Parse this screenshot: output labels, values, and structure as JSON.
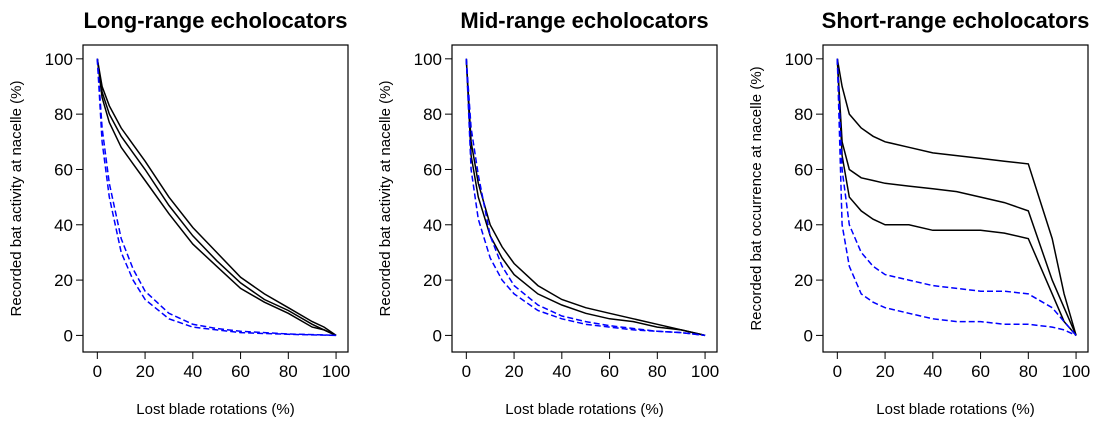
{
  "chart_data": [
    {
      "type": "line",
      "title": "Long-range echolocators",
      "xlabel": "Lost blade rotations (%)",
      "ylabel": "Recorded bat activity at nacelle (%)",
      "x": [
        0,
        2,
        5,
        10,
        15,
        20,
        30,
        40,
        50,
        60,
        70,
        80,
        90,
        95,
        100
      ],
      "xlim": [
        -6,
        105
      ],
      "ylim": [
        -6,
        105
      ],
      "xticks": [
        0,
        20,
        40,
        60,
        80,
        100
      ],
      "yticks": [
        0,
        20,
        40,
        60,
        80,
        100
      ],
      "series": [
        {
          "color": "#000000",
          "linestyle": "solid",
          "values": [
            100,
            88,
            80,
            72,
            66,
            60,
            47,
            36,
            27,
            19,
            13,
            9,
            4,
            2,
            0
          ]
        },
        {
          "color": "#000000",
          "linestyle": "solid",
          "values": [
            100,
            86,
            77,
            68,
            62,
            56,
            44,
            33,
            25,
            17,
            12,
            8,
            3,
            2,
            0
          ]
        },
        {
          "color": "#000000",
          "linestyle": "solid",
          "values": [
            100,
            90,
            83,
            75,
            69,
            63,
            50,
            39,
            30,
            21,
            15,
            10,
            5,
            3,
            0
          ]
        },
        {
          "color": "#0000ff",
          "linestyle": "dashed",
          "values": [
            100,
            75,
            55,
            35,
            24,
            16,
            8,
            4,
            2.5,
            1.5,
            1,
            0.5,
            0.3,
            0.2,
            0
          ]
        },
        {
          "color": "#0000ff",
          "linestyle": "dashed",
          "values": [
            100,
            70,
            50,
            30,
            20,
            13,
            6,
            3,
            2,
            1,
            0.7,
            0.4,
            0.2,
            0.1,
            0
          ]
        }
      ]
    },
    {
      "type": "line",
      "title": "Mid-range echolocators",
      "xlabel": "Lost blade rotations (%)",
      "ylabel": "Recorded bat activity at nacelle (%)",
      "x": [
        0,
        2,
        5,
        10,
        15,
        20,
        30,
        40,
        50,
        60,
        70,
        80,
        90,
        95,
        100
      ],
      "xlim": [
        -6,
        105
      ],
      "ylim": [
        -6,
        105
      ],
      "xticks": [
        0,
        20,
        40,
        60,
        80,
        100
      ],
      "yticks": [
        0,
        20,
        40,
        60,
        80,
        100
      ],
      "series": [
        {
          "color": "#000000",
          "linestyle": "solid",
          "values": [
            100,
            70,
            55,
            40,
            32,
            26,
            18,
            13,
            10,
            8,
            6,
            4,
            2,
            1,
            0
          ]
        },
        {
          "color": "#000000",
          "linestyle": "solid",
          "values": [
            100,
            65,
            50,
            36,
            28,
            22,
            15,
            11,
            8,
            6,
            5,
            3,
            2,
            1,
            0
          ]
        },
        {
          "color": "#0000ff",
          "linestyle": "dashed",
          "values": [
            100,
            60,
            42,
            28,
            20,
            15,
            9,
            6,
            4,
            3,
            2,
            1.5,
            1,
            0.5,
            0
          ]
        },
        {
          "color": "#0000ff",
          "linestyle": "dashed",
          "values": [
            100,
            75,
            58,
            36,
            25,
            18,
            11,
            7,
            5,
            3.5,
            2.5,
            1.5,
            1,
            0.5,
            0
          ]
        }
      ]
    },
    {
      "type": "line",
      "title": "Short-range echolocators",
      "xlabel": "Lost blade rotations (%)",
      "ylabel": "Recorded bat occurrence at nacelle (%)",
      "x": [
        0,
        2,
        5,
        10,
        15,
        20,
        30,
        40,
        50,
        60,
        70,
        80,
        90,
        95,
        100
      ],
      "xlim": [
        -6,
        105
      ],
      "ylim": [
        -6,
        105
      ],
      "xticks": [
        0,
        20,
        40,
        60,
        80,
        100
      ],
      "yticks": [
        0,
        20,
        40,
        60,
        80,
        100
      ],
      "series": [
        {
          "color": "#000000",
          "linestyle": "solid",
          "values": [
            100,
            90,
            80,
            75,
            72,
            70,
            68,
            66,
            65,
            64,
            63,
            62,
            35,
            15,
            0
          ]
        },
        {
          "color": "#000000",
          "linestyle": "solid",
          "values": [
            100,
            70,
            60,
            57,
            56,
            55,
            54,
            53,
            52,
            50,
            48,
            45,
            20,
            10,
            0
          ]
        },
        {
          "color": "#000000",
          "linestyle": "solid",
          "values": [
            100,
            65,
            50,
            45,
            42,
            40,
            40,
            38,
            38,
            38,
            37,
            35,
            15,
            5,
            0
          ]
        },
        {
          "color": "#0000ff",
          "linestyle": "dashed",
          "values": [
            100,
            60,
            40,
            30,
            25,
            22,
            20,
            18,
            17,
            16,
            16,
            15,
            10,
            5,
            0
          ]
        },
        {
          "color": "#0000ff",
          "linestyle": "dashed",
          "values": [
            100,
            40,
            25,
            15,
            12,
            10,
            8,
            6,
            5,
            5,
            4,
            4,
            3,
            2,
            0
          ]
        }
      ]
    }
  ]
}
